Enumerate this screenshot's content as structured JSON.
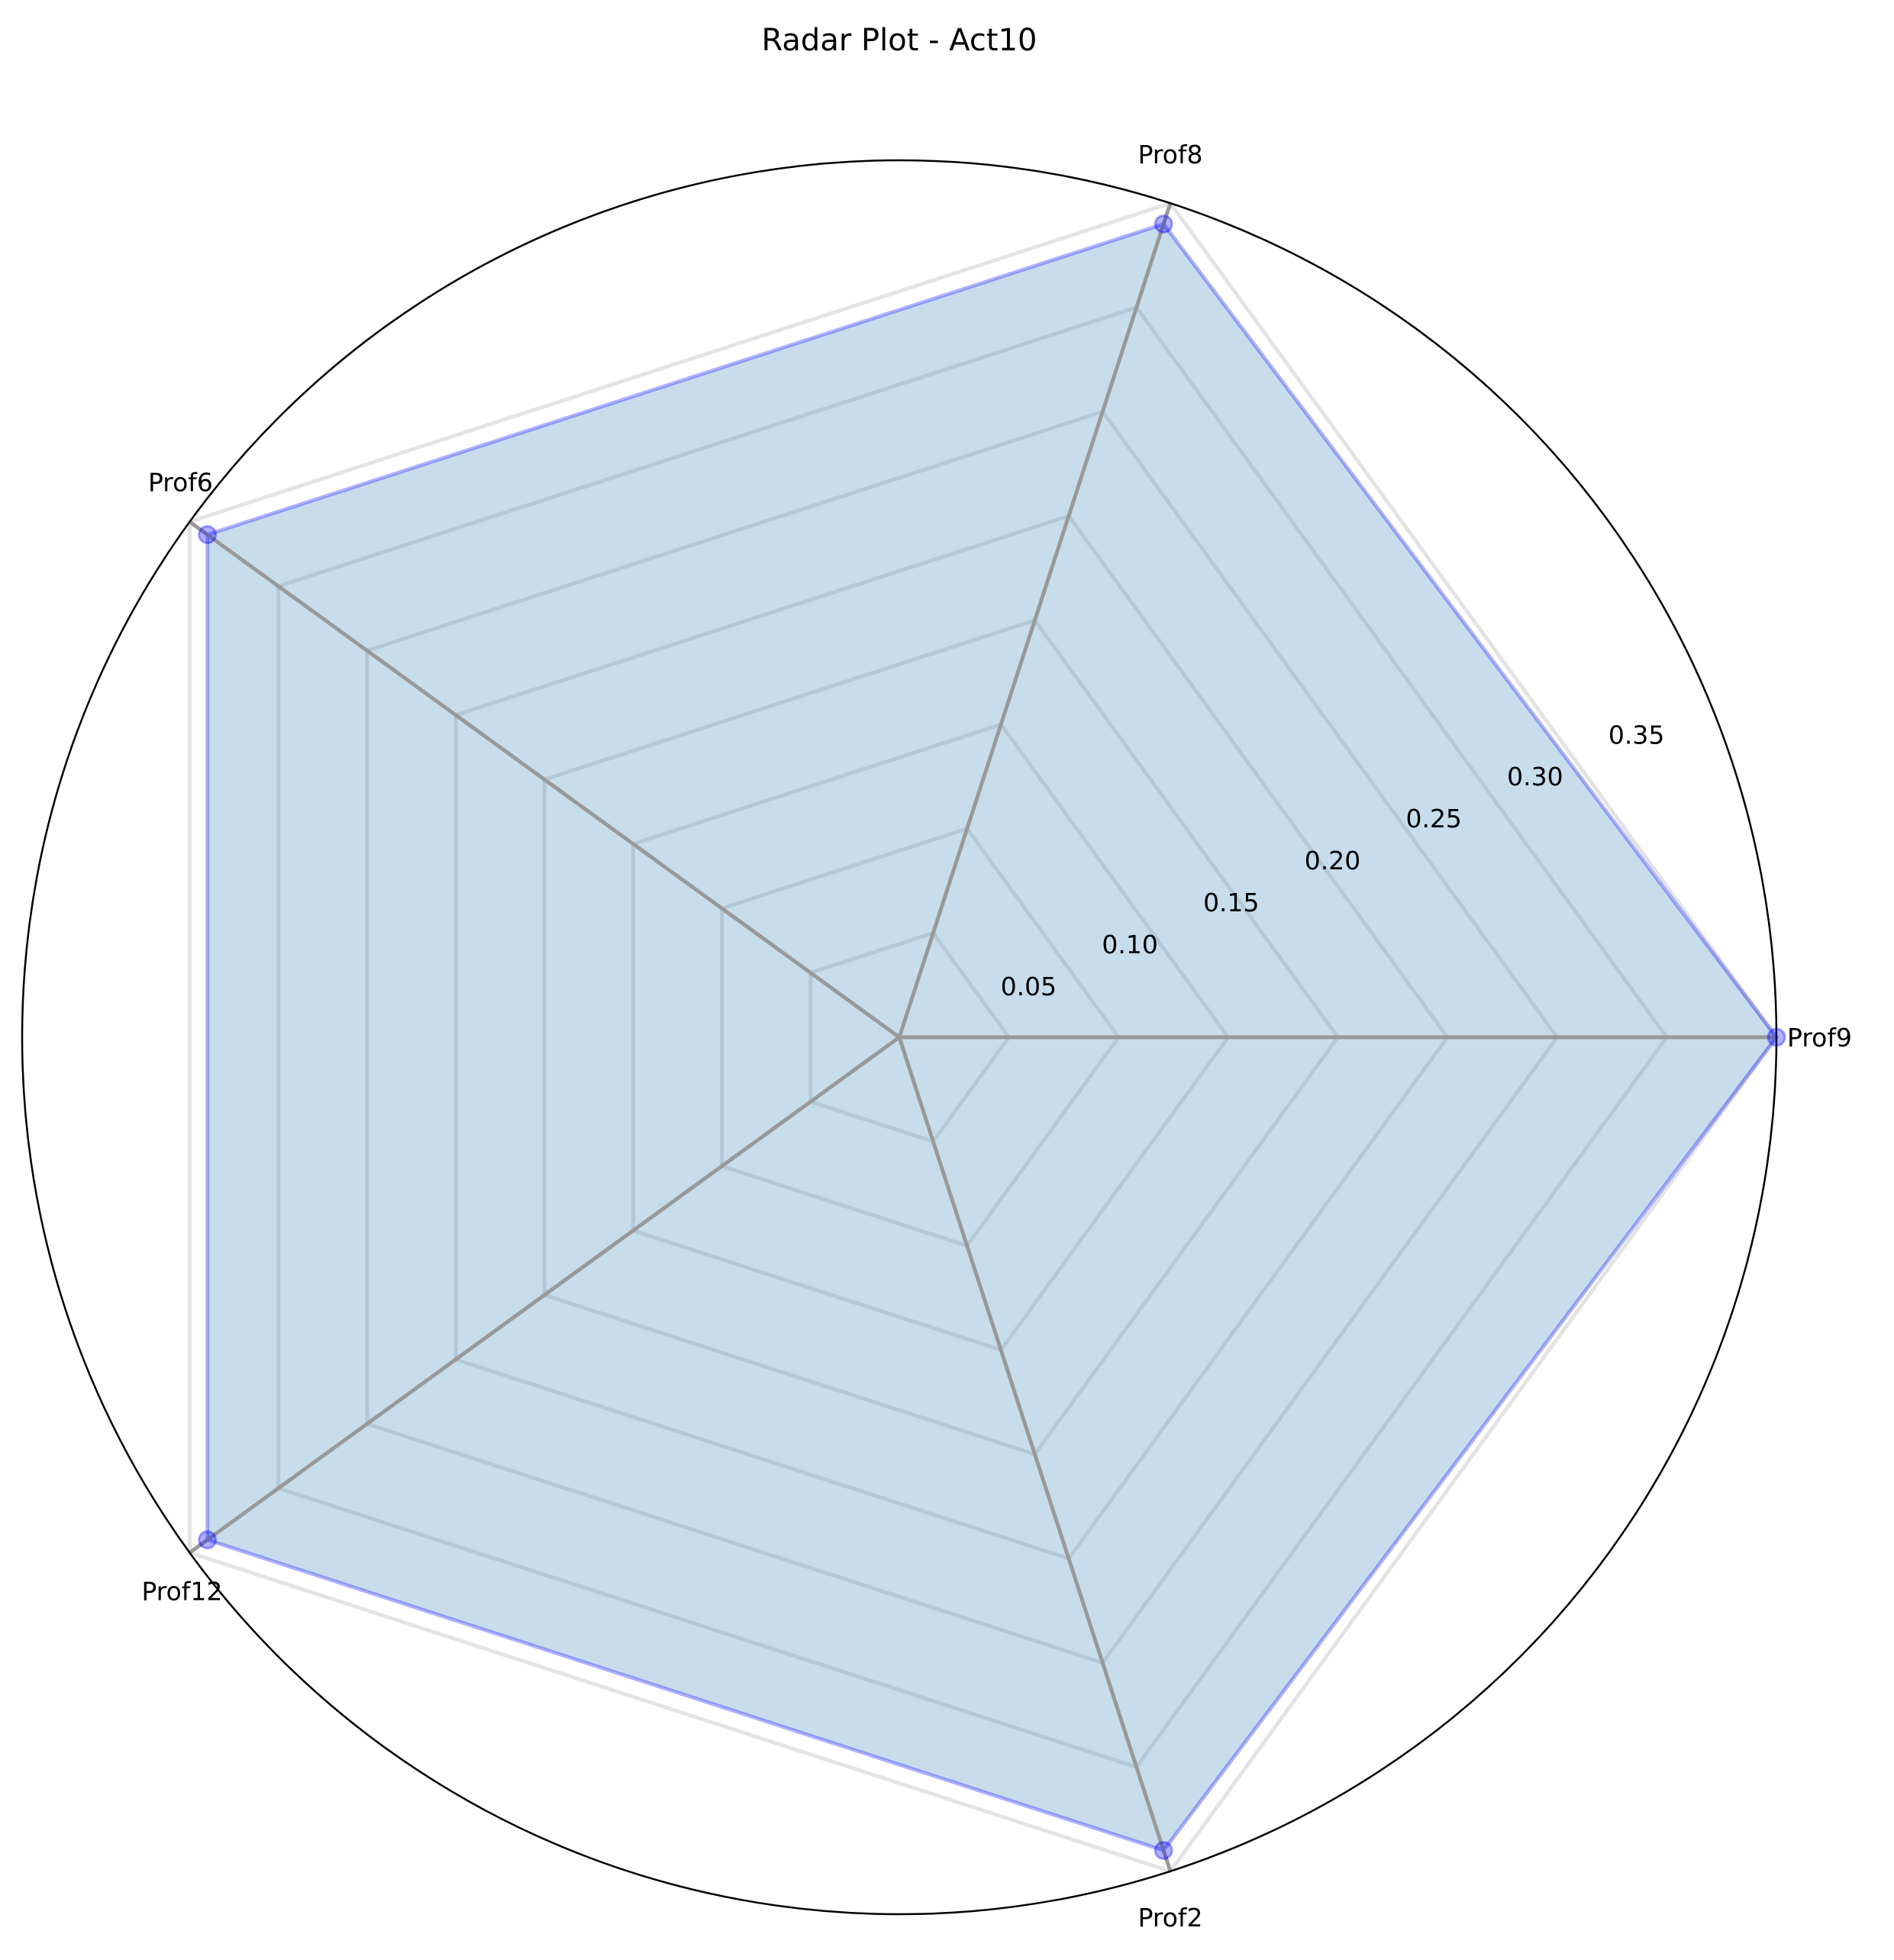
{
  "chart_data": {
    "type": "radar",
    "title": "Radar Plot - Act10",
    "categories": [
      "Prof9",
      "Prof8",
      "Prof6",
      "Prof12",
      "Prof2"
    ],
    "series": [
      {
        "values": [
          0.4,
          0.39,
          0.39,
          0.39,
          0.39
        ]
      }
    ],
    "rlim": [
      0,
      0.4
    ],
    "rticks": [
      0.05,
      0.1,
      0.15,
      0.2,
      0.25,
      0.3,
      0.35
    ],
    "rtick_labels": [
      "0.05",
      "0.10",
      "0.15",
      "0.20",
      "0.25",
      "0.30",
      "0.35"
    ],
    "grid": true,
    "colors": {
      "fill": "#1f77b4",
      "outline": "#0000ff",
      "grid": "#808080",
      "frame": "#000000"
    }
  }
}
